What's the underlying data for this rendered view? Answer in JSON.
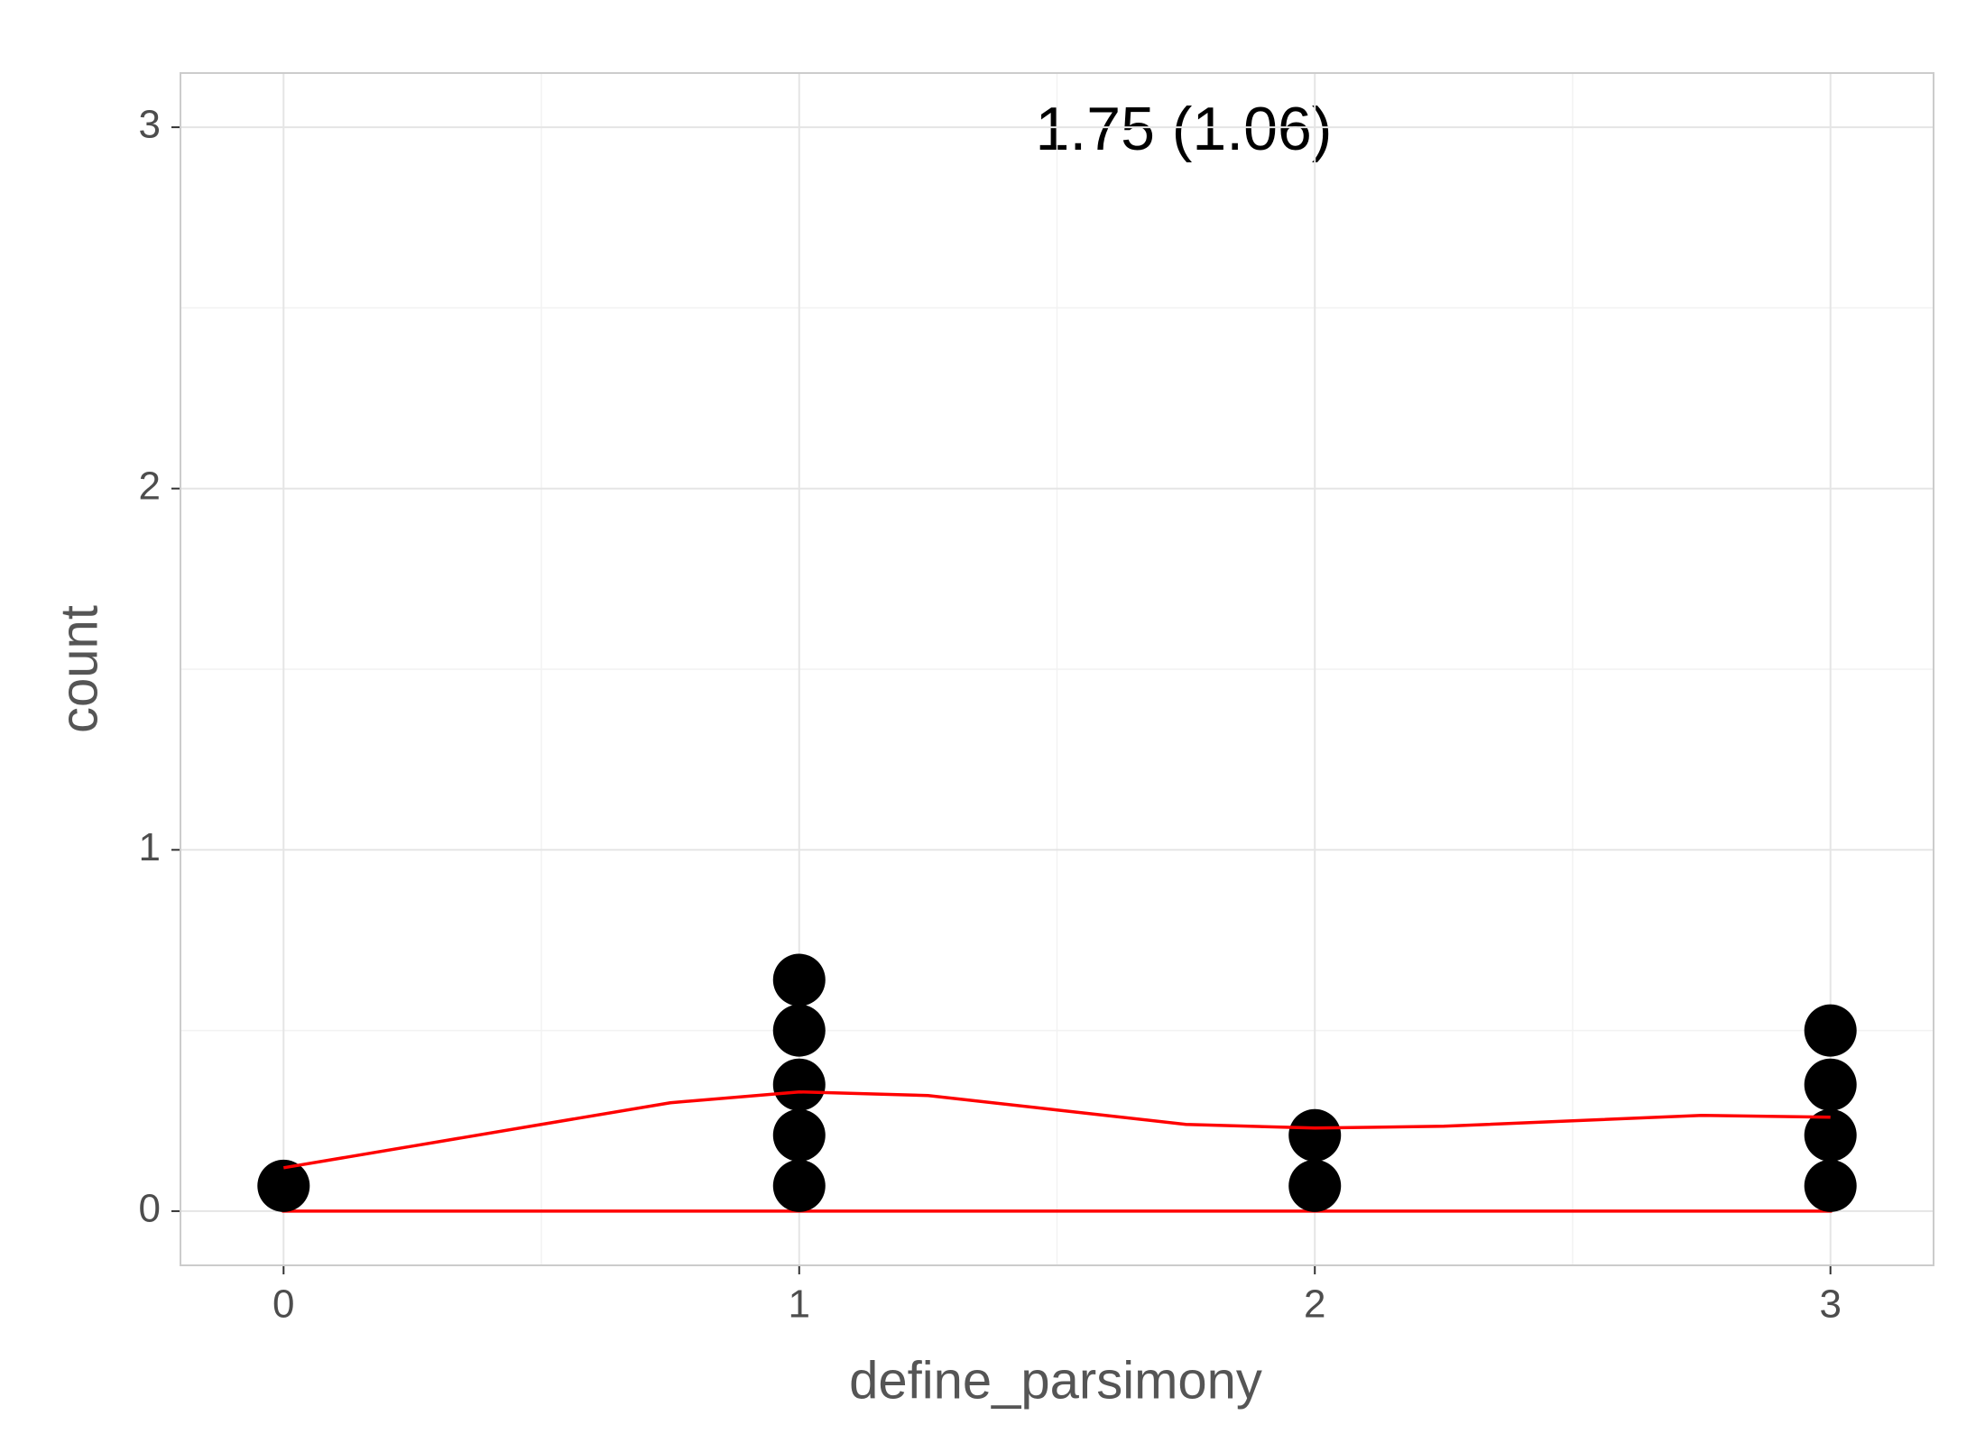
{
  "chart_data": {
    "type": "dotplot",
    "annotation": "1.75 (1.06)",
    "x_label": "define_parsimony",
    "y_label": "count",
    "xlim": [
      -0.2,
      3.2
    ],
    "xticks": [
      0,
      1,
      2,
      3
    ],
    "xminor": [
      0.5,
      1.5,
      2.5
    ],
    "ylim": [
      -0.15,
      3.15
    ],
    "yticks": [
      0,
      1,
      2,
      3
    ],
    "yminor": [
      0.5,
      1.5,
      2.5
    ],
    "grid": true,
    "dots": {
      "color": "#000000",
      "x": [
        0,
        1,
        1,
        1,
        1,
        1,
        2,
        2,
        3,
        3,
        3,
        3
      ],
      "y": [
        0.07,
        0.07,
        0.21,
        0.35,
        0.5,
        0.64,
        0.07,
        0.21,
        0.07,
        0.21,
        0.35,
        0.5
      ]
    },
    "density": {
      "color": "#ff0000",
      "x": [
        0,
        0.25,
        0.5,
        0.75,
        1,
        1.25,
        1.5,
        1.75,
        2,
        2.25,
        2.5,
        2.75,
        3
      ],
      "y": [
        0.12,
        0.18,
        0.24,
        0.3,
        0.33,
        0.32,
        0.28,
        0.24,
        0.23,
        0.235,
        0.25,
        0.265,
        0.26
      ]
    }
  }
}
